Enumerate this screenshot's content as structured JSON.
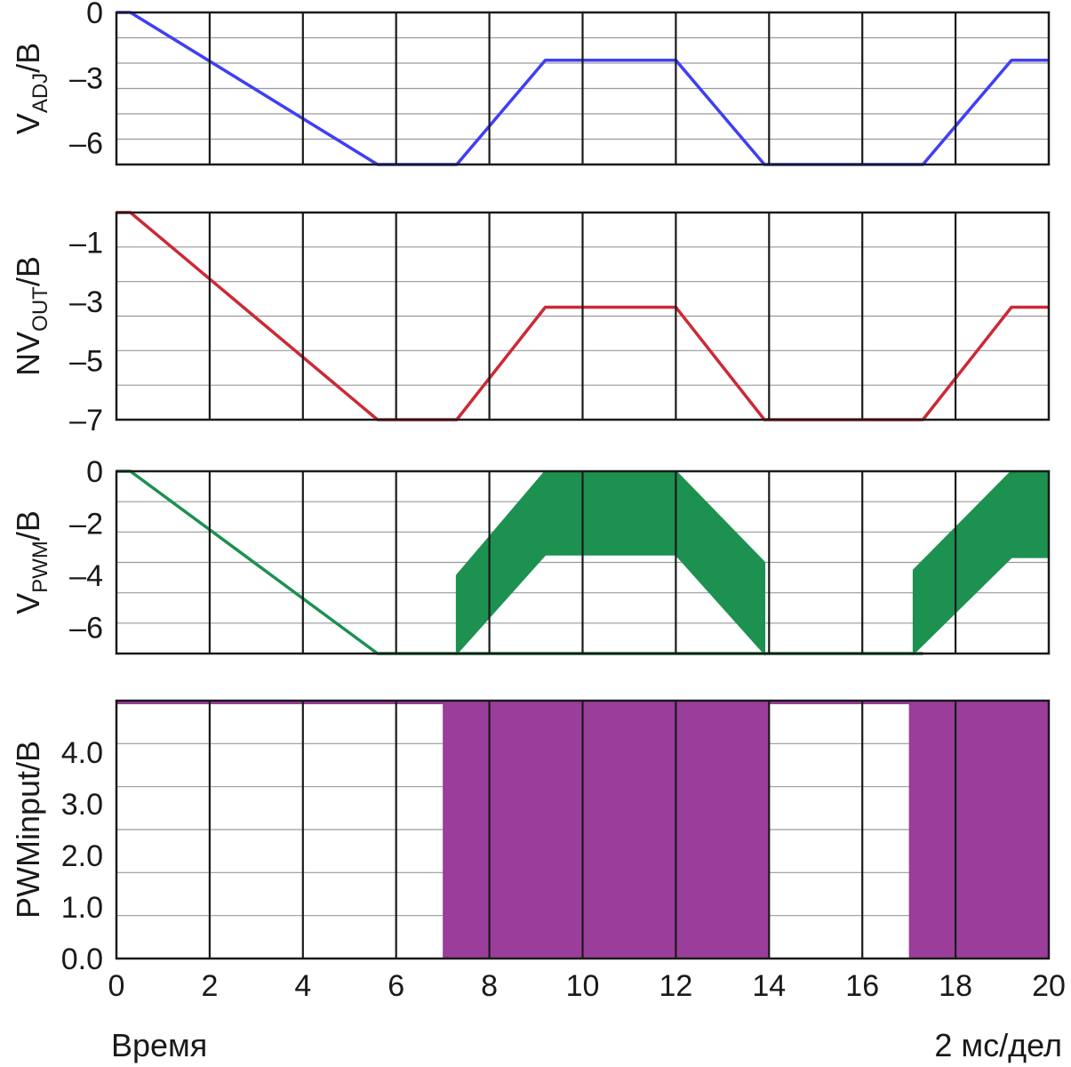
{
  "figure": {
    "x_axis": {
      "min": 0,
      "max": 20,
      "ticks": [
        0,
        2,
        4,
        6,
        8,
        10,
        12,
        14,
        16,
        18,
        20
      ],
      "tick_labels": [
        "0",
        "2",
        "4",
        "6",
        "8",
        "10",
        "12",
        "14",
        "16",
        "18",
        "20"
      ],
      "left_caption": "Время",
      "right_caption": "2 мс/дел"
    }
  },
  "chart_data": [
    {
      "type": "line",
      "ylabel": {
        "main": "V",
        "sub": "ADJ",
        "unit": "/В"
      },
      "ylim": [
        -7,
        0
      ],
      "yticks": [
        0,
        -3,
        -6
      ],
      "ytick_labels": [
        "0",
        "–3",
        "–6"
      ],
      "grid": true,
      "color": "#3f3ff5",
      "series": [
        {
          "x": [
            0,
            0.3,
            5.6,
            7.3,
            9.2,
            12.0,
            13.9,
            17.3,
            19.2,
            20
          ],
          "y": [
            0,
            0,
            -7,
            -7,
            -2.2,
            -2.2,
            -7,
            -7,
            -2.2,
            -2.2
          ]
        }
      ]
    },
    {
      "type": "line",
      "ylabel": {
        "main": "NV",
        "sub": "OUT",
        "unit": "/В"
      },
      "ylim": [
        -7,
        0
      ],
      "yticks": [
        -1,
        -3,
        -5,
        -7
      ],
      "ytick_labels": [
        "–1",
        "–3",
        "–5",
        "–7"
      ],
      "grid": true,
      "color": "#cc2936",
      "series": [
        {
          "x": [
            0,
            0.3,
            5.6,
            7.3,
            9.2,
            12.0,
            13.9,
            17.3,
            19.2,
            20
          ],
          "y": [
            0,
            0,
            -7,
            -7,
            -3.2,
            -3.2,
            -7,
            -7,
            -3.2,
            -3.2
          ]
        }
      ]
    },
    {
      "type": "area",
      "ylabel": {
        "main": "V",
        "sub": "PWM",
        "unit": "/В"
      },
      "ylim": [
        -7,
        0
      ],
      "yticks": [
        0,
        -2,
        -4,
        -6
      ],
      "ytick_labels": [
        "0",
        "–2",
        "–4",
        "–6"
      ],
      "grid": true,
      "color": "#1c9150",
      "line": {
        "x": [
          0,
          0.3,
          5.6,
          7.3,
          13.9,
          17.3
        ],
        "y": [
          0,
          0,
          -7,
          -7,
          -7,
          -7
        ]
      },
      "bands": [
        {
          "x": [
            7.3,
            7.3,
            9.2,
            12.0,
            13.9,
            13.9,
            12.0,
            9.2
          ],
          "y": [
            -7,
            -4.0,
            0,
            0,
            -3.5,
            -7,
            -3.2,
            -3.2
          ]
        },
        {
          "x": [
            17.1,
            17.1,
            19.2,
            20,
            20,
            19.2
          ],
          "y": [
            -7,
            -3.8,
            0,
            0,
            -3.3,
            -3.3
          ]
        }
      ]
    },
    {
      "type": "area",
      "ylabel": {
        "main": "PWMinput",
        "sub": "",
        "unit": "/В"
      },
      "ylim": [
        0,
        5
      ],
      "yticks": [
        0,
        1,
        2,
        3,
        4
      ],
      "ytick_labels": [
        "0.0",
        "1.0",
        "2.0",
        "3.0",
        "4.0"
      ],
      "grid": true,
      "color": "#9a3d9b",
      "level": 5,
      "filled_intervals": [
        [
          7.0,
          14.0
        ],
        [
          17.0,
          20.0
        ]
      ]
    }
  ]
}
